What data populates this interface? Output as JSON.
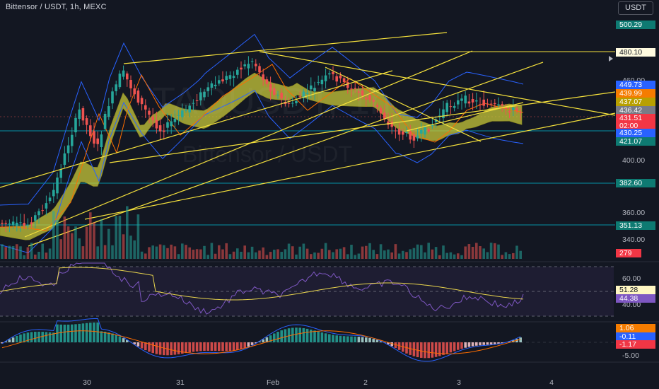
{
  "header": {
    "title": "Bittensor / USDT, 1h, MEXC",
    "currency_button": "USDT"
  },
  "watermark": {
    "symbol": "TAOUSDT, 1h",
    "name": "Bittensor / USDT"
  },
  "price_axis": {
    "ticks": [
      "460.00",
      "400.00",
      "360.00",
      "340.00"
    ],
    "tags": [
      {
        "label": "500.29",
        "bg": "#0e7a72",
        "fg": "#ffffff"
      },
      {
        "label": "480.10",
        "bg": "#fffbe0",
        "fg": "#131722"
      },
      {
        "label": "449.73",
        "bg": "#2962ff",
        "fg": "#ffffff"
      },
      {
        "label": "439.99",
        "bg": "#f57c00",
        "fg": "#ffffff"
      },
      {
        "label": "437.07",
        "bg": "#b8a000",
        "fg": "#ffffff"
      },
      {
        "label": "436.42",
        "bg": "#787b86",
        "fg": "#ffffff"
      },
      {
        "label": "431.51",
        "bg": "#f23645",
        "fg": "#ffffff"
      },
      {
        "label": "02:00",
        "bg": "#f23645",
        "fg": "#ffffff"
      },
      {
        "label": "430.25",
        "bg": "#2962ff",
        "fg": "#ffffff"
      },
      {
        "label": "421.07",
        "bg": "#0e7a72",
        "fg": "#ffffff"
      },
      {
        "label": "382.60",
        "bg": "#0e7a72",
        "fg": "#ffffff"
      },
      {
        "label": "351.13",
        "bg": "#0e7a72",
        "fg": "#ffffff"
      },
      {
        "label": "279",
        "bg": "#f23645",
        "fg": "#ffffff"
      }
    ]
  },
  "rsi_pane": {
    "ticks": [
      "60.00",
      "40.00"
    ],
    "tags": [
      {
        "label": "51.28",
        "bg": "#fff7c2",
        "fg": "#131722"
      },
      {
        "label": "44.38",
        "bg": "#7e57c2",
        "fg": "#ffffff"
      }
    ]
  },
  "macd_pane": {
    "ticks": [
      "-5.00"
    ],
    "tags": [
      {
        "label": "1.06",
        "bg": "#f57c00",
        "fg": "#ffffff"
      },
      {
        "label": "-0.11",
        "bg": "#2962ff",
        "fg": "#ffffff"
      },
      {
        "label": "-1.17",
        "bg": "#f23645",
        "fg": "#ffffff"
      }
    ]
  },
  "time_axis": [
    "30",
    "31",
    "Feb",
    "2",
    "3",
    "4"
  ],
  "colors": {
    "background": "#131722",
    "up": "#26a69a",
    "down": "#ef5350",
    "bollinger": "#2962ff",
    "trendline": "#f5e13c",
    "cloud": "#c8c83a",
    "horizontal_levels": "#00bcd4",
    "rsi": "#7e57c2",
    "rsi_ma": "#e8d44d",
    "macd": "#2962ff",
    "signal": "#ff6d00"
  }
}
